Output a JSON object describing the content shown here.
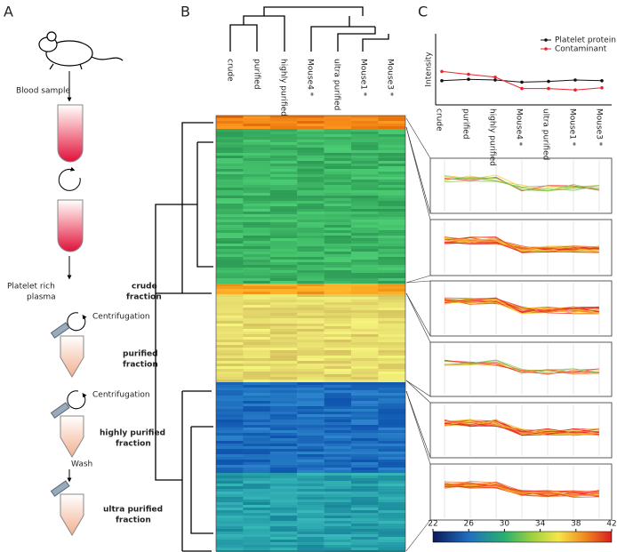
{
  "panels": {
    "a": "A",
    "b": "B",
    "c": "C"
  },
  "workflow": {
    "blood": "Blood sample",
    "prp": [
      "Platelet rich",
      "plasma"
    ],
    "crude": [
      "crude",
      "fraction"
    ],
    "centrifugation1": "Centrifugation",
    "purified": [
      "purified",
      "fraction"
    ],
    "centrifugation2": "Centrifugation",
    "highly": [
      "highly purified",
      "fraction"
    ],
    "wash": "Wash",
    "ultra": [
      "ultra purified",
      "fraction"
    ]
  },
  "samples": [
    "crude",
    "purified",
    "highly purified",
    "Mouse4 *",
    "ultra purified",
    "Mouse1 *",
    "Mouse3 *"
  ],
  "chart_data": {
    "type": "line",
    "y_label": "Intensity",
    "categories": [
      "crude",
      "purified",
      "highly purified",
      "Mouse4 *",
      "ultra purified",
      "Mouse1 *",
      "Mouse3 *"
    ],
    "series": [
      {
        "name": "Platelet protein",
        "color": "#111111",
        "values": [
          3.4,
          3.6,
          3.5,
          3.2,
          3.3,
          3.5,
          3.4
        ]
      },
      {
        "name": "Contaminant",
        "color": "#e8262a",
        "values": [
          4.7,
          4.3,
          3.9,
          2.3,
          2.3,
          2.1,
          2.4
        ]
      }
    ],
    "ylim": [
      0,
      10
    ]
  },
  "colorbar": {
    "lim": [
      22,
      42
    ],
    "ticks": [
      22,
      26,
      30,
      34,
      38,
      42
    ]
  }
}
